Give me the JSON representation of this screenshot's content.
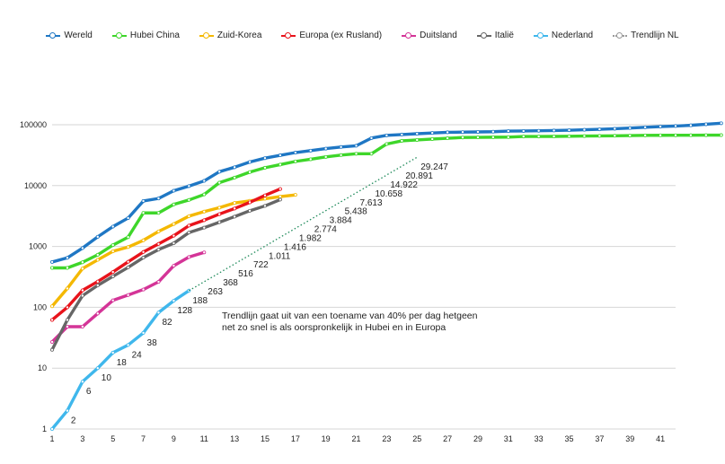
{
  "chart_data": {
    "type": "line",
    "yscale": "log",
    "ylim": [
      1,
      100000
    ],
    "xlim": [
      1,
      42
    ],
    "grid": true,
    "legend_position": "top",
    "y_ticks": [
      "1",
      "10",
      "100",
      "1000",
      "10000",
      "100000"
    ],
    "x_ticks": [
      "1",
      "3",
      "5",
      "7",
      "9",
      "11",
      "13",
      "15",
      "17",
      "19",
      "21",
      "23",
      "25",
      "27",
      "29",
      "31",
      "33",
      "35",
      "37",
      "39",
      "41"
    ],
    "series": [
      {
        "name": "Wereld",
        "color": "#1f77c4",
        "values": [
          555,
          650,
          940,
          1440,
          2120,
          2930,
          5580,
          6150,
          8230,
          9820,
          11950,
          16920,
          20050,
          24430,
          28270,
          31480,
          34880,
          37550,
          40550,
          43100,
          45170,
          60380,
          66885,
          69030,
          71220,
          73270,
          75140,
          75640,
          76200,
          76840,
          78600,
          78970,
          79550,
          80410,
          81380,
          82750,
          84120,
          86010,
          88360,
          90840,
          93090,
          95320,
          97890,
          101800,
          105800
        ]
      },
      {
        "name": "Hubei China",
        "color": "#3ed62a",
        "values": [
          444,
          444,
          549,
          729,
          1052,
          1423,
          3554,
          3554,
          4903,
          5806,
          7153,
          11177,
          13522,
          16678,
          19665,
          22112,
          24953,
          27100,
          29631,
          31728,
          33366,
          33366,
          48206,
          54406,
          56249,
          58182,
          59989,
          61682,
          62031,
          62442,
          62662,
          64084,
          64084,
          64287,
          64786,
          65187,
          65596,
          65914,
          66337,
          66907,
          67103,
          67217,
          67332,
          67466,
          67592
        ]
      },
      {
        "name": "Zuid-Korea",
        "color": "#f4b800",
        "values": [
          104,
          204,
          433,
          602,
          833,
          977,
          1261,
          1766,
          2337,
          3150,
          3736,
          4335,
          5186,
          5621,
          6088,
          6593,
          7041
        ]
      },
      {
        "name": "Europa (ex Rusland)",
        "color": "#e8131b",
        "values": [
          62,
          100,
          190,
          265,
          380,
          560,
          810,
          1100,
          1500,
          2200,
          2700,
          3400,
          4200,
          5300,
          6900,
          8800
        ]
      },
      {
        "name": "Duitsland",
        "color": "#d43497",
        "values": [
          27,
          48,
          48,
          79,
          130,
          159,
          196,
          262,
          482,
          670,
          799
        ]
      },
      {
        "name": "Italië",
        "color": "#666666",
        "values": [
          20,
          62,
          155,
          229,
          322,
          453,
          655,
          888,
          1128,
          1694,
          2036,
          2502,
          3089,
          3858,
          4636,
          5883
        ]
      },
      {
        "name": "Nederland",
        "color": "#3fb7ec",
        "values": [
          1,
          2,
          6,
          10,
          18,
          24,
          38,
          82,
          128,
          188
        ]
      }
    ],
    "trendline": {
      "name": "Trendlijn NL",
      "color": "#1e8a5a",
      "x": [
        10,
        11,
        12,
        13,
        14,
        15,
        16,
        17,
        18,
        19,
        20,
        21,
        22,
        23,
        24,
        25
      ],
      "values": [
        188,
        263,
        368,
        516,
        722,
        1011,
        1416,
        1982,
        2774,
        3884,
        5438,
        7613,
        10658,
        14922,
        20891,
        29247
      ],
      "labels": [
        "188",
        "263",
        "368",
        "516",
        "722",
        "1.011",
        "1.416",
        "1.982",
        "2.774",
        "3.884",
        "5.438",
        "7.613",
        "10.658",
        "14.922",
        "20.891",
        "29.247"
      ]
    },
    "nl_labels": [
      "2",
      "6",
      "10",
      "18",
      "24",
      "38",
      "82",
      "128"
    ],
    "annotation": [
      "Trendlijn gaat uit van een toename van 40% per dag hetgeen",
      "net zo snel is als oorspronkelijk in Hubei en in Europa"
    ]
  }
}
